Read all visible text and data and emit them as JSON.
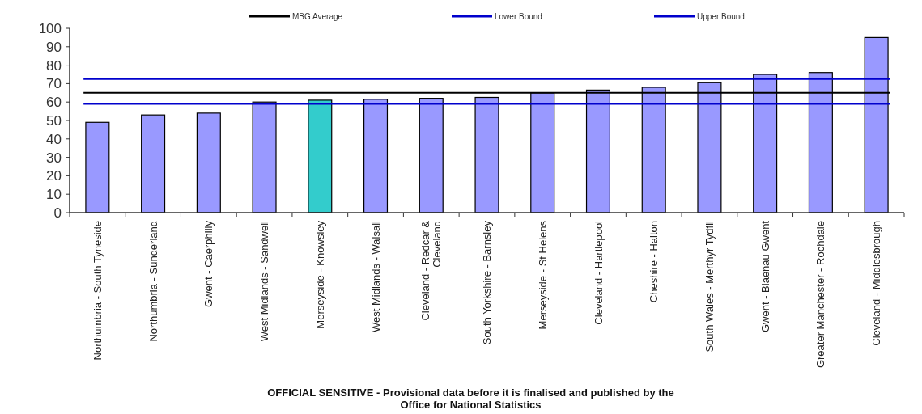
{
  "chart_data": {
    "type": "bar",
    "categories": [
      "Northumbria - South Tyneside",
      "Northumbria - Sunderland",
      "Gwent - Caerphilly",
      "West Midlands - Sandwell",
      "Merseyside - Knowsley",
      "West Midlands - Walsall",
      "Cleveland - Redcar & Cleveland",
      "South Yorkshire - Barnsley",
      "Merseyside - St Helens",
      "Cleveland - Hartlepool",
      "Cheshire - Halton",
      "South Wales - Merthyr Tydfil",
      "Gwent - Blaenau Gwent",
      "Greater Manchester - Rochdale",
      "Cleveland - Middlesbrough"
    ],
    "values": [
      49,
      53,
      54,
      60,
      61,
      61.5,
      62,
      62.5,
      65,
      66.5,
      68,
      70.5,
      75,
      76,
      95
    ],
    "colors": [
      "#9999ff",
      "#9999ff",
      "#9999ff",
      "#9999ff",
      "#33cccc",
      "#9999ff",
      "#9999ff",
      "#9999ff",
      "#9999ff",
      "#9999ff",
      "#9999ff",
      "#9999ff",
      "#9999ff",
      "#9999ff",
      "#9999ff"
    ],
    "ylim": [
      0,
      100
    ],
    "yticks": [
      0,
      10,
      20,
      30,
      40,
      50,
      60,
      70,
      80,
      90,
      100
    ],
    "ref_lines": [
      {
        "axis": "y",
        "value": 65,
        "label": "MBG Average",
        "color": "#000000"
      },
      {
        "axis": "y",
        "value": 59,
        "label": "Lower Bound",
        "color": "#0000cc"
      },
      {
        "axis": "y",
        "value": 72.5,
        "label": "Upper Bound",
        "color": "#0000cc"
      }
    ],
    "legend": "top",
    "grid": false,
    "annotations": [
      "OFFICIAL SENSITIVE  - Provisional data before it is finalised and published by the Office for National Statistics"
    ]
  }
}
